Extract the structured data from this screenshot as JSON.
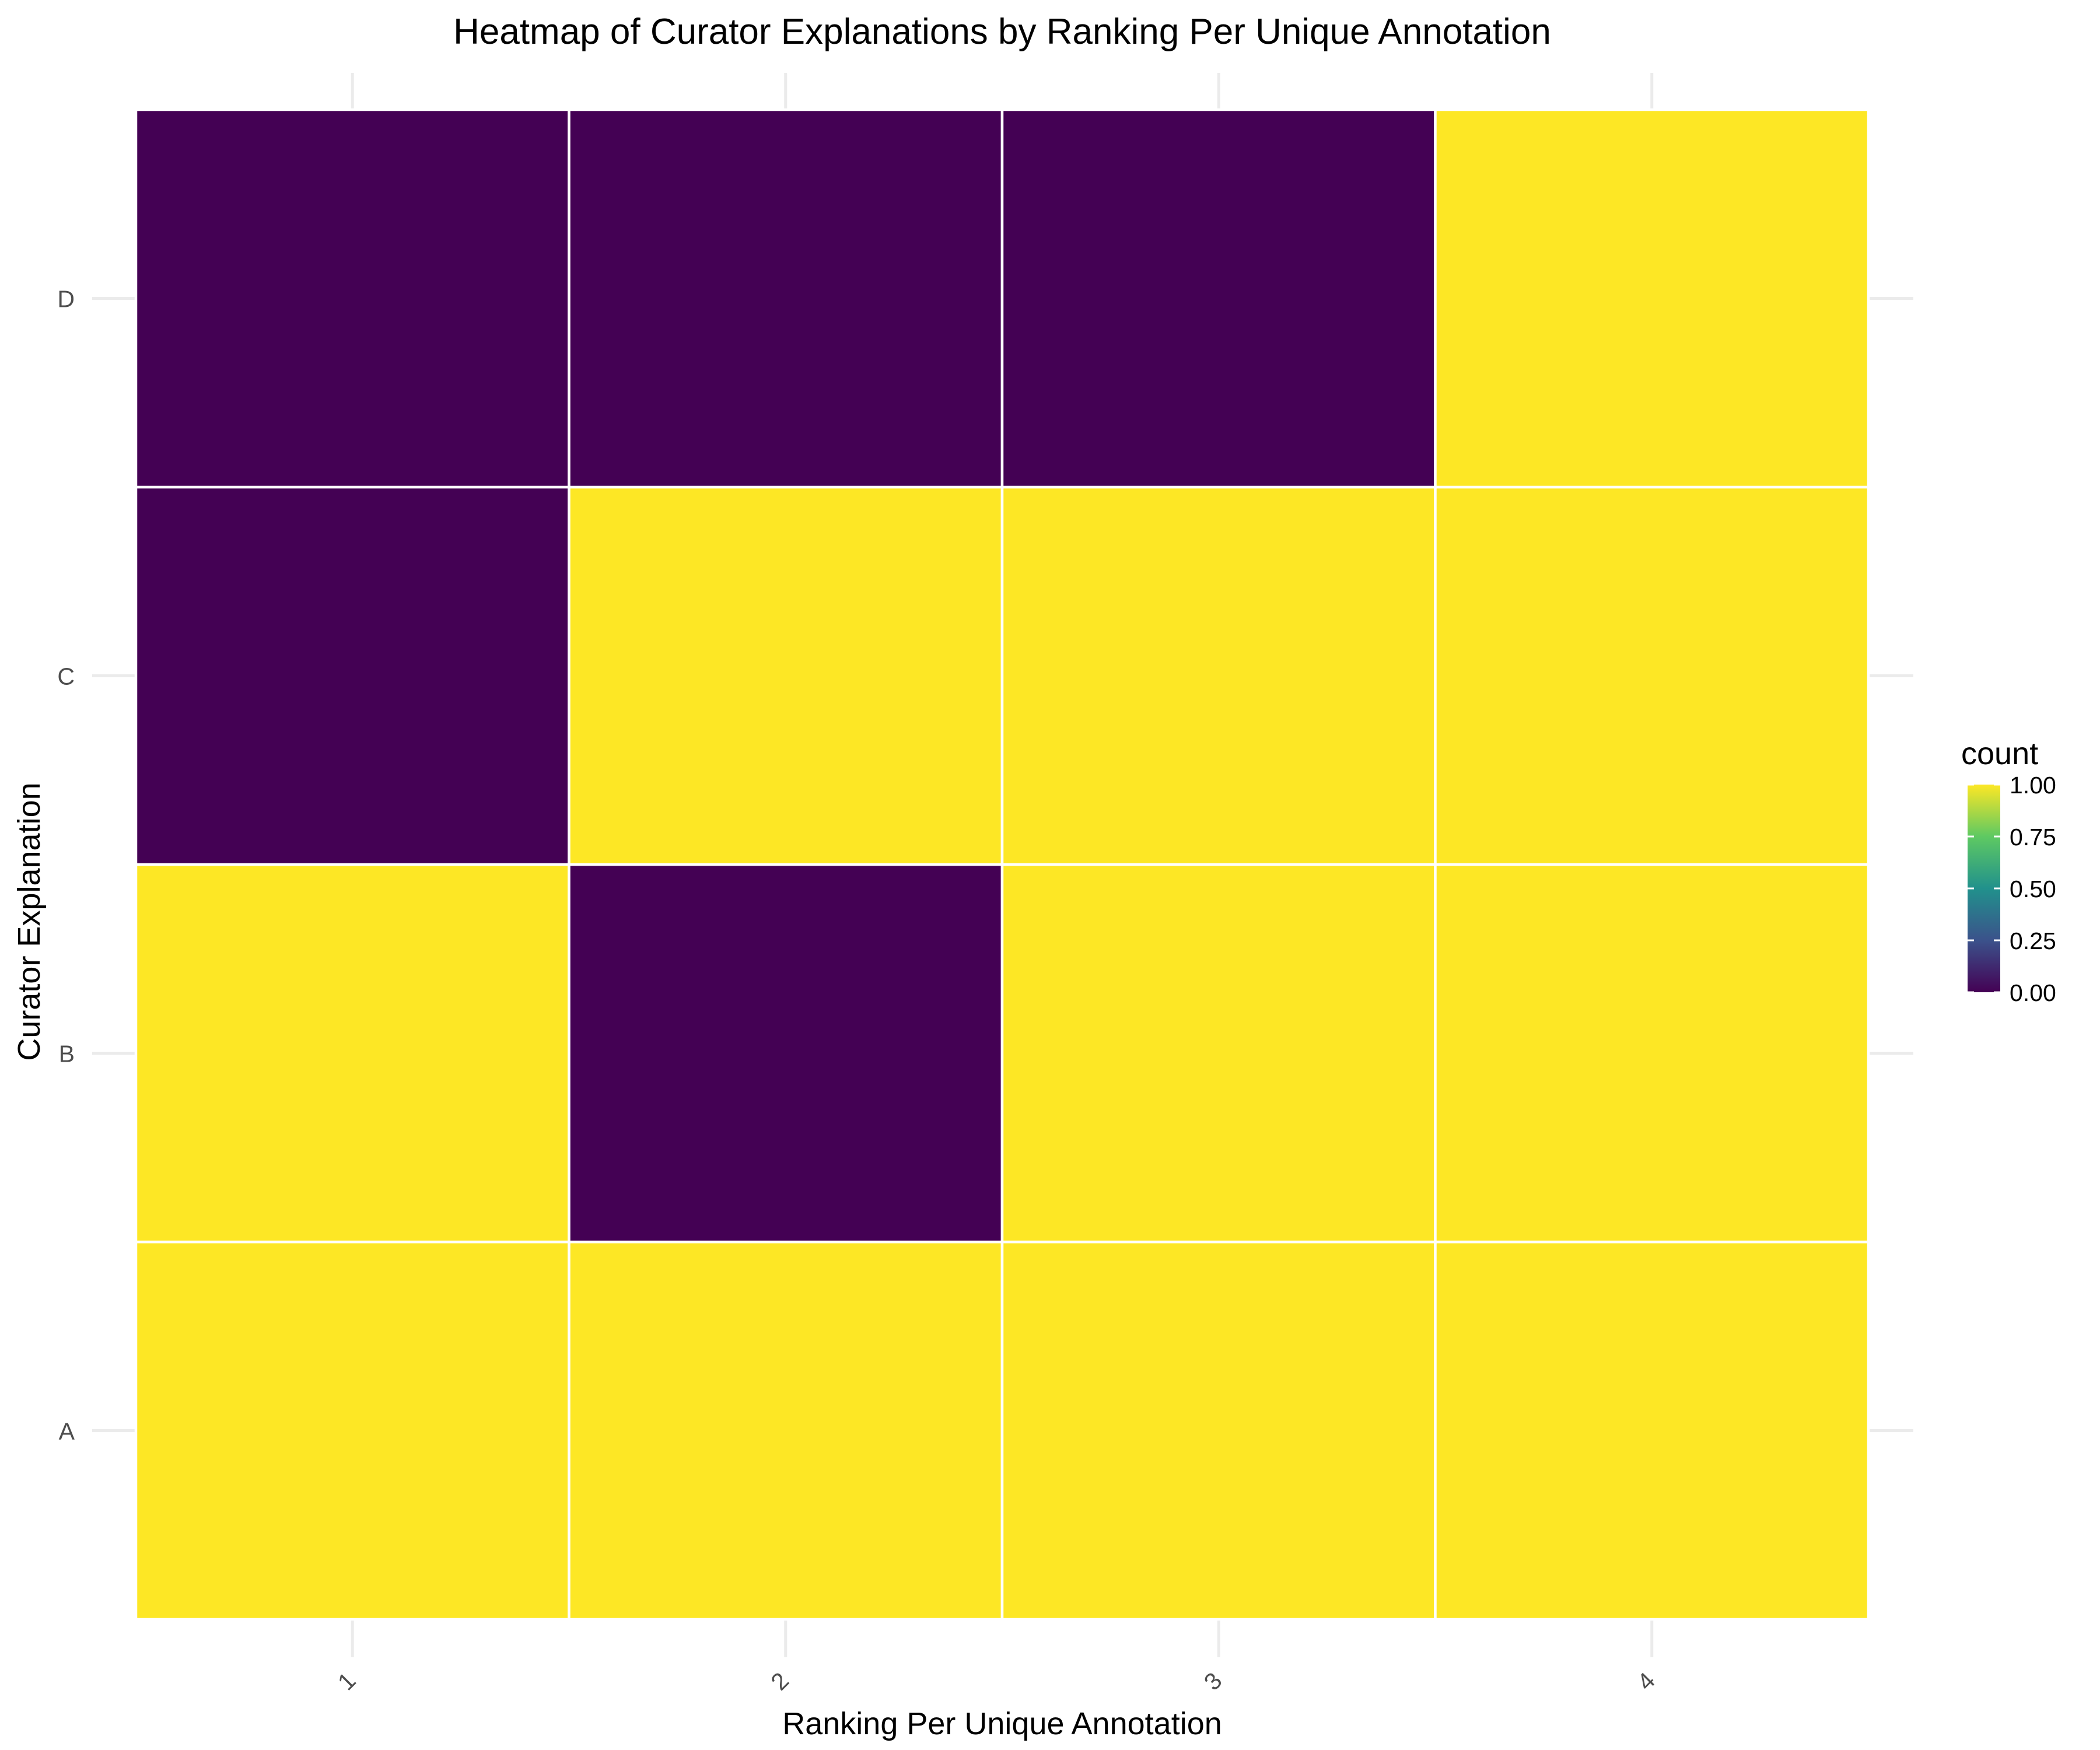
{
  "chart_data": {
    "type": "heatmap",
    "title": "Heatmap of Curator Explanations by Ranking Per Unique Annotation",
    "xlabel": "Ranking Per Unique Annotation",
    "ylabel": "Curator Explanation",
    "x_categories": [
      "1",
      "2",
      "3",
      "4"
    ],
    "y_categories": [
      "A",
      "B",
      "C",
      "D"
    ],
    "cells": [
      {
        "x": "1",
        "y": "A",
        "value": 1
      },
      {
        "x": "2",
        "y": "A",
        "value": 1
      },
      {
        "x": "3",
        "y": "A",
        "value": 1
      },
      {
        "x": "4",
        "y": "A",
        "value": 1
      },
      {
        "x": "1",
        "y": "B",
        "value": 1
      },
      {
        "x": "2",
        "y": "B",
        "value": 0
      },
      {
        "x": "3",
        "y": "B",
        "value": 1
      },
      {
        "x": "4",
        "y": "B",
        "value": 1
      },
      {
        "x": "1",
        "y": "C",
        "value": 0
      },
      {
        "x": "2",
        "y": "C",
        "value": 1
      },
      {
        "x": "3",
        "y": "C",
        "value": 1
      },
      {
        "x": "4",
        "y": "C",
        "value": 1
      },
      {
        "x": "1",
        "y": "D",
        "value": 0
      },
      {
        "x": "2",
        "y": "D",
        "value": 0
      },
      {
        "x": "3",
        "y": "D",
        "value": 0
      },
      {
        "x": "4",
        "y": "D",
        "value": 1
      }
    ],
    "legend": {
      "title": "count",
      "position": "right",
      "range": [
        0,
        1
      ],
      "ticks": [
        "0.00",
        "0.25",
        "0.50",
        "0.75",
        "1.00"
      ]
    },
    "colorscale": "viridis",
    "colors": {
      "low": "#440154",
      "high": "#fde725",
      "gradient": [
        "#440154",
        "#3b528b",
        "#21918c",
        "#5ec962",
        "#fde725"
      ],
      "grid": "#ebebeb",
      "tile_border": "#ffffff"
    },
    "grid": true,
    "x_tick_rotation": "-45"
  }
}
